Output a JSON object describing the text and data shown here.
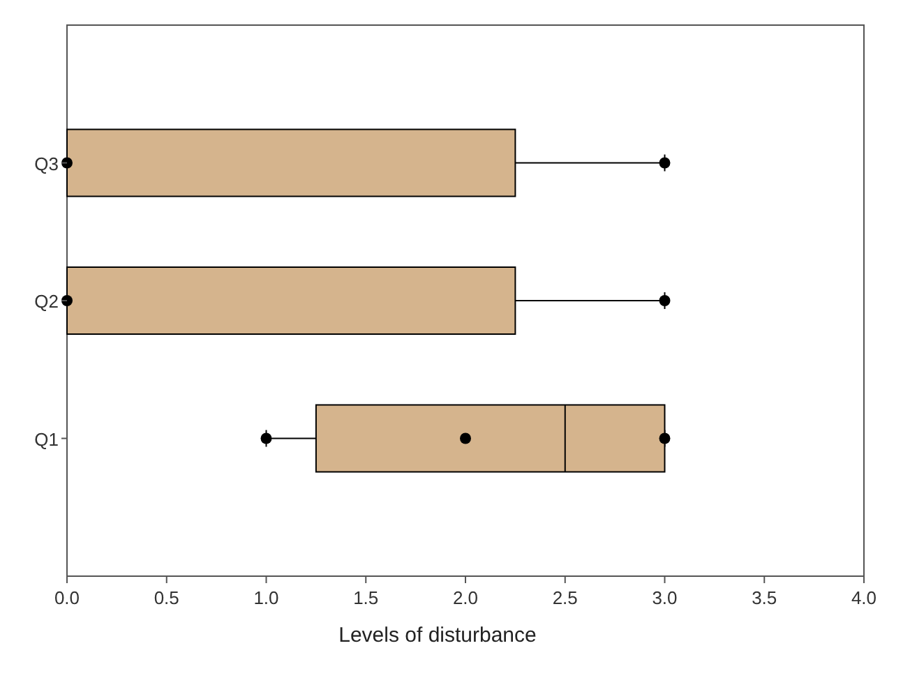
{
  "chart_data": {
    "type": "box",
    "orientation": "horizontal",
    "xlabel": "Levels of disturbance",
    "categories": [
      "Q3",
      "Q2",
      "Q1"
    ],
    "color": "#d5b48d",
    "xlim": [
      0,
      4
    ],
    "xticks": [
      {
        "value": 0,
        "label": "0.0"
      },
      {
        "value": 0.5,
        "label": "0.5"
      },
      {
        "value": 1,
        "label": "1.0"
      },
      {
        "value": 1.5,
        "label": "1.5"
      },
      {
        "value": 2,
        "label": "2.0"
      },
      {
        "value": 2.5,
        "label": "2.5"
      },
      {
        "value": 3,
        "label": "3.0"
      },
      {
        "value": 3.5,
        "label": "3.5"
      },
      {
        "value": 4,
        "label": "4.0"
      }
    ],
    "boxes": [
      {
        "low": 0,
        "q1": 0,
        "median": 0,
        "q3": 2.25,
        "high": 3,
        "outliers": [
          0,
          3
        ]
      },
      {
        "low": 0,
        "q1": 0,
        "median": 0,
        "q3": 2.25,
        "high": 3,
        "outliers": [
          0,
          3
        ]
      },
      {
        "low": 1,
        "q1": 1.25,
        "median": 2.5,
        "q3": 3,
        "high": 3,
        "mean": 2,
        "outliers": [
          1,
          3
        ]
      }
    ]
  }
}
